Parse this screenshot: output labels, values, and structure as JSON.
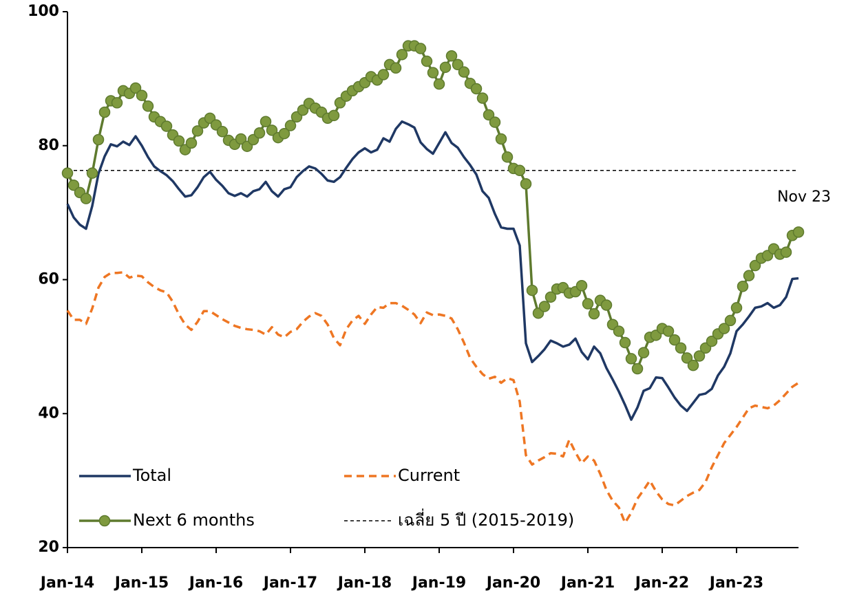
{
  "chart_data": {
    "type": "line",
    "categories": [
      "Jan-14",
      null,
      null,
      null,
      null,
      null,
      null,
      null,
      null,
      null,
      null,
      null,
      "Jan-15",
      null,
      null,
      null,
      null,
      null,
      null,
      null,
      null,
      null,
      null,
      null,
      "Jan-16",
      null,
      null,
      null,
      null,
      null,
      null,
      null,
      null,
      null,
      null,
      null,
      "Jan-17",
      null,
      null,
      null,
      null,
      null,
      null,
      null,
      null,
      null,
      null,
      null,
      "Jan-18",
      null,
      null,
      null,
      null,
      null,
      null,
      null,
      null,
      null,
      null,
      null,
      "Jan-19",
      null,
      null,
      null,
      null,
      null,
      null,
      null,
      null,
      null,
      null,
      null,
      "Jan-20",
      null,
      null,
      null,
      null,
      null,
      null,
      null,
      null,
      null,
      null,
      null,
      "Jan-21",
      null,
      null,
      null,
      null,
      null,
      null,
      null,
      null,
      null,
      null,
      null,
      "Jan-22",
      null,
      null,
      null,
      null,
      null,
      null,
      null,
      null,
      null,
      null,
      null,
      "Jan-23",
      null,
      null,
      null,
      null,
      null,
      null,
      null,
      null,
      null,
      null
    ],
    "series": [
      {
        "name": "Total",
        "color": "#1f3864",
        "dash": false,
        "marker": false,
        "values": [
          71.3,
          69.3,
          68.2,
          67.6,
          71.0,
          75.8,
          78.4,
          80.2,
          79.9,
          80.6,
          80.1,
          81.4,
          80.0,
          78.3,
          76.9,
          76.2,
          75.6,
          74.7,
          73.5,
          72.4,
          72.6,
          73.8,
          75.3,
          76.1,
          74.9,
          74.0,
          72.9,
          72.5,
          72.9,
          72.4,
          73.2,
          73.5,
          74.6,
          73.2,
          72.4,
          73.5,
          73.8,
          75.3,
          76.2,
          76.9,
          76.6,
          75.8,
          74.8,
          74.6,
          75.3,
          76.7,
          78.0,
          79.0,
          79.6,
          79.0,
          79.4,
          81.1,
          80.6,
          82.5,
          83.6,
          83.2,
          82.7,
          80.5,
          79.5,
          78.8,
          80.4,
          82.0,
          80.4,
          79.7,
          78.3,
          77.1,
          75.7,
          73.2,
          72.2,
          69.8,
          67.8,
          67.6,
          67.6,
          65.1,
          50.5,
          47.7,
          48.6,
          49.6,
          50.9,
          50.5,
          50.0,
          50.3,
          51.2,
          49.2,
          48.1,
          50.0,
          49.0,
          46.8,
          45.1,
          43.3,
          41.3,
          39.1,
          40.9,
          43.4,
          43.8,
          45.4,
          45.3,
          43.9,
          42.4,
          41.2,
          40.4,
          41.6,
          42.8,
          43.0,
          43.7,
          45.7,
          47.0,
          49.0,
          52.3,
          53.3,
          54.5,
          55.8,
          56.0,
          56.5,
          55.8,
          56.2,
          57.4,
          60.1,
          60.2
        ]
      },
      {
        "name": "Current",
        "color": "#ee7623",
        "dash": true,
        "marker": false,
        "values": [
          55.4,
          54.0,
          54.0,
          53.4,
          55.7,
          58.8,
          60.4,
          61.0,
          61.0,
          61.1,
          60.3,
          60.6,
          60.5,
          59.6,
          58.9,
          58.4,
          58.1,
          56.7,
          54.8,
          53.3,
          52.5,
          53.7,
          55.3,
          55.3,
          54.7,
          54.1,
          53.6,
          53.1,
          52.8,
          52.6,
          52.5,
          52.3,
          51.8,
          52.9,
          51.8,
          51.4,
          52.2,
          52.6,
          53.7,
          54.5,
          55.0,
          54.6,
          53.3,
          51.3,
          50.2,
          52.6,
          53.9,
          54.6,
          53.4,
          54.8,
          55.9,
          55.8,
          56.5,
          56.5,
          56.1,
          55.5,
          54.8,
          53.5,
          55.1,
          54.7,
          54.8,
          54.6,
          54.2,
          52.6,
          50.6,
          48.3,
          47.0,
          45.9,
          45.2,
          45.5,
          44.6,
          45.3,
          45.0,
          41.8,
          33.8,
          32.4,
          33.0,
          33.5,
          34.1,
          34.0,
          33.6,
          36.1,
          34.2,
          32.6,
          33.6,
          33.0,
          31.0,
          28.6,
          27.0,
          26.0,
          23.7,
          25.2,
          27.3,
          28.6,
          30.0,
          28.4,
          27.2,
          26.5,
          26.3,
          27.0,
          27.7,
          28.2,
          28.6,
          29.8,
          32.0,
          33.8,
          35.6,
          36.8,
          38.0,
          39.4,
          40.8,
          41.2,
          41.0,
          40.8,
          41.2,
          42.0,
          43.0,
          44.0,
          44.6
        ]
      },
      {
        "name": "Next 6 months",
        "color": "#5e7a2e",
        "marker_color": "#7f9a3f",
        "dash": false,
        "marker": true,
        "values": [
          75.9,
          74.1,
          73.0,
          72.1,
          75.9,
          80.9,
          85.0,
          86.7,
          86.4,
          88.2,
          87.8,
          88.6,
          87.5,
          85.9,
          84.3,
          83.6,
          82.9,
          81.6,
          80.7,
          79.4,
          80.4,
          82.2,
          83.4,
          84.1,
          83.1,
          82.1,
          80.8,
          80.2,
          81.0,
          79.9,
          80.9,
          81.9,
          83.6,
          82.3,
          81.2,
          81.8,
          83.0,
          84.3,
          85.3,
          86.3,
          85.6,
          85.0,
          84.1,
          84.5,
          86.4,
          87.4,
          88.2,
          88.8,
          89.4,
          90.3,
          89.8,
          90.6,
          92.1,
          91.6,
          93.6,
          94.9,
          94.9,
          94.5,
          92.6,
          90.9,
          89.2,
          91.7,
          93.4,
          92.1,
          91.0,
          89.3,
          88.5,
          87.1,
          84.6,
          83.5,
          81.0,
          78.3,
          76.6,
          76.3,
          74.3,
          58.4,
          55.0,
          56.0,
          57.4,
          58.6,
          58.8,
          58.0,
          58.2,
          59.1,
          56.4,
          54.9,
          56.9,
          56.2,
          53.3,
          52.3,
          50.6,
          48.2,
          46.7,
          49.1,
          51.4,
          51.7,
          52.7,
          52.3,
          51.0,
          49.8,
          48.3,
          47.2,
          48.6,
          49.8,
          50.8,
          51.9,
          52.7,
          53.9,
          55.8,
          59.0,
          60.6,
          62.1,
          63.2,
          63.6,
          64.6,
          63.8,
          64.1,
          66.6,
          67.1
        ]
      }
    ],
    "hline": {
      "name": "เฉลี่ย 5 ปี (2015-2019)",
      "value": 76.3,
      "color": "#000000"
    },
    "annotation": "Nov 23",
    "ylim": [
      20,
      100
    ],
    "yticks": [
      20,
      40,
      60,
      80,
      100
    ],
    "grid": false
  }
}
